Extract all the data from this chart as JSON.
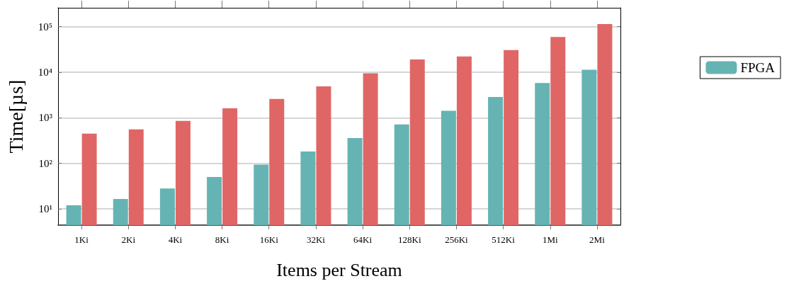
{
  "chart_data": {
    "type": "bar",
    "xlabel": "Items per Stream",
    "ylabel": "Time[µs]",
    "categories": [
      "1Ki",
      "2Ki",
      "4Ki",
      "8Ki",
      "16Ki",
      "32Ki",
      "64Ki",
      "128Ki",
      "256Ki",
      "512Ki",
      "1Mi",
      "2Mi"
    ],
    "series": [
      {
        "name": "FPGA",
        "color": "#66b3b3",
        "values": [
          12,
          16.5,
          28,
          50,
          94,
          182,
          358,
          716,
          1430,
          2860,
          5780,
          11400
        ]
      },
      {
        "color": "#e06666",
        "values": [
          450,
          557,
          857,
          1610,
          2600,
          4890,
          9530,
          19000,
          22200,
          30700,
          59200,
          114000
        ]
      }
    ],
    "log": "y",
    "ylim": [
      4.4,
      260000
    ],
    "yticks": [
      {
        "value": 10,
        "label": "10¹"
      },
      {
        "value": 100,
        "label": "10²"
      },
      {
        "value": 1000,
        "label": "10³"
      },
      {
        "value": 10000,
        "label": "10⁴"
      },
      {
        "value": 100000,
        "label": "10⁵"
      }
    ],
    "grid": "y",
    "legend": "right"
  }
}
